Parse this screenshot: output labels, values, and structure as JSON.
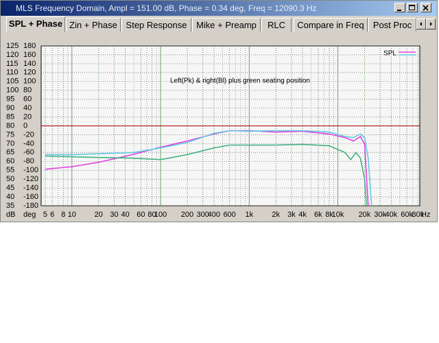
{
  "window": {
    "title": "MLS Frequency Domain, Ampl = 151.00 dB, Phase = 0.34 deg, Freq = 12090.3 Hz",
    "tabs": [
      "SPL + Phase",
      "Zin + Phase",
      "Step Response",
      "Mike + Preamp",
      "RLC",
      "Compare in Freq",
      "Post Proc"
    ]
  },
  "chart_data": {
    "type": "line",
    "x_scale": "log",
    "grid": true,
    "annotation": "Left(Pk) & right(Bl) plus green seating position",
    "legend": "SPL",
    "y_label": "dB",
    "y2_label": "deg",
    "x_unit": "Hz",
    "xlim": [
      4.5,
      84000
    ],
    "xticks": [
      5,
      6,
      8,
      10,
      20,
      30,
      40,
      60,
      80,
      100,
      200,
      300,
      400,
      600,
      {
        "value": 1000,
        "label": "1k"
      },
      {
        "value": 2000,
        "label": "2k"
      },
      {
        "value": 3000,
        "label": "3k"
      },
      {
        "value": 4000,
        "label": "4k"
      },
      {
        "value": 6000,
        "label": "6k"
      },
      {
        "value": 8000,
        "label": "8k"
      },
      {
        "value": 10000,
        "label": "10k"
      },
      {
        "value": 20000,
        "label": "20k"
      },
      {
        "value": 30000,
        "label": "30k"
      },
      {
        "value": 40000,
        "label": "40k"
      },
      {
        "value": 60000,
        "label": "60k"
      },
      {
        "value": 80000,
        "label": "80k"
      }
    ],
    "ylim": [
      35,
      125
    ],
    "yticks": [
      35,
      40,
      45,
      50,
      55,
      60,
      65,
      70,
      75,
      80,
      85,
      90,
      95,
      100,
      105,
      110,
      115,
      120,
      125
    ],
    "y2lim": [
      -180,
      180
    ],
    "y2ticks": [
      -180,
      -160,
      -140,
      -120,
      -100,
      -80,
      -60,
      -40,
      -20,
      0,
      20,
      40,
      60,
      80,
      100,
      120,
      140,
      160,
      180
    ],
    "reference_y": 80,
    "reference_color": "#b00000",
    "series": [
      {
        "color": "#e040e0",
        "x": [
          5,
          10,
          20,
          50,
          100,
          200,
          400,
          600,
          1000,
          2000,
          4000,
          8000,
          12000,
          15000,
          18000,
          20000,
          22000
        ],
        "values": [
          55.6,
          57,
          59.5,
          64,
          68,
          71.5,
          75.4,
          77.3,
          77.3,
          76.5,
          77,
          75.4,
          73.4,
          71.5,
          74,
          69.6,
          35
        ]
      },
      {
        "color": "#60c8e0",
        "x": [
          5,
          10,
          50,
          100,
          200,
          400,
          600,
          1000,
          2000,
          4000,
          8000,
          12000,
          15000,
          18000,
          20000,
          22000,
          24000
        ],
        "values": [
          63.8,
          63.8,
          65,
          67.6,
          70.7,
          75.8,
          77.3,
          77,
          77.3,
          77.3,
          76.5,
          74,
          73.4,
          75.4,
          73.4,
          61.8,
          35
        ]
      },
      {
        "color": "#40b080",
        "x": [
          5,
          20,
          50,
          100,
          200,
          400,
          600,
          1000,
          2000,
          4000,
          8000,
          12000,
          14000,
          16000,
          18000,
          20000,
          21000
        ],
        "values": [
          63,
          62.2,
          61.8,
          61,
          63.8,
          67.6,
          69.2,
          69.2,
          69.2,
          69.6,
          68.8,
          65,
          61,
          65,
          61.8,
          50.2,
          35
        ]
      }
    ]
  }
}
